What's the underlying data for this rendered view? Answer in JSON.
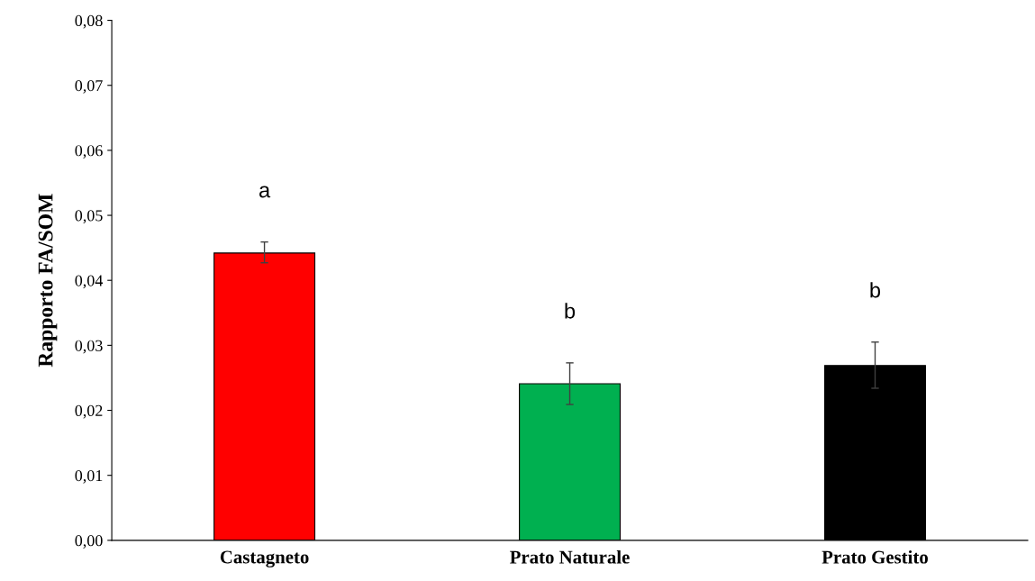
{
  "chart_data": {
    "type": "bar",
    "ylabel": "Rapporto FA/SOM",
    "categories": [
      "Castagneto",
      "Prato Naturale",
      "Prato Gestito"
    ],
    "values": [
      0.0442,
      0.0241,
      0.0269
    ],
    "colors": [
      "#ff0000",
      "#00b050",
      "#000000"
    ],
    "errors": [
      [
        0.0427,
        0.0459
      ],
      [
        0.0209,
        0.0273
      ],
      [
        0.0234,
        0.0305
      ]
    ],
    "ylim": [
      0,
      0.08
    ],
    "yticks": [
      {
        "value": 0,
        "label": "0,00"
      },
      {
        "value": 0.01,
        "label": "0,01"
      },
      {
        "value": 0.02,
        "label": "0,02"
      },
      {
        "value": 0.03,
        "label": "0,03"
      },
      {
        "value": 0.04,
        "label": "0,04"
      },
      {
        "value": 0.05,
        "label": "0,05"
      },
      {
        "value": 0.06,
        "label": "0,06"
      },
      {
        "value": 0.07,
        "label": "0,07"
      },
      {
        "value": 0.08,
        "label": "0,08"
      }
    ],
    "annotations": [
      "a",
      "b",
      "b"
    ],
    "grid": false
  }
}
